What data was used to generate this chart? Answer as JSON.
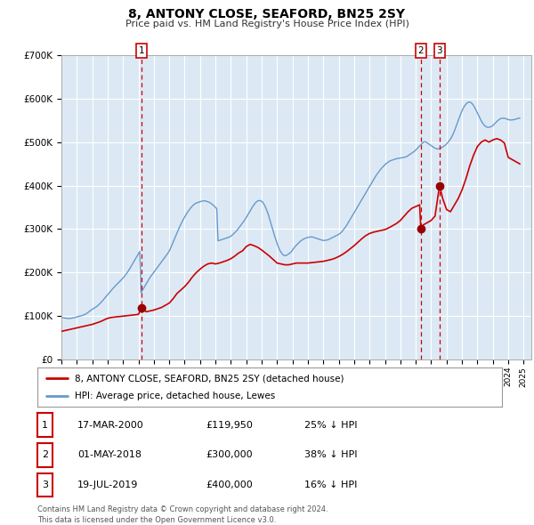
{
  "title": "8, ANTONY CLOSE, SEAFORD, BN25 2SY",
  "subtitle": "Price paid vs. HM Land Registry's House Price Index (HPI)",
  "bg_color": "#dce9f5",
  "grid_color": "#ffffff",
  "hpi_color": "#6699cc",
  "price_color": "#cc0000",
  "marker_color": "#990000",
  "ylim": [
    0,
    700000
  ],
  "yticks": [
    0,
    100000,
    200000,
    300000,
    400000,
    500000,
    600000,
    700000
  ],
  "ytick_labels": [
    "£0",
    "£100K",
    "£200K",
    "£300K",
    "£400K",
    "£500K",
    "£600K",
    "£700K"
  ],
  "xlim_start": 1995.0,
  "xlim_end": 2025.5,
  "xticks": [
    1995,
    1996,
    1997,
    1998,
    1999,
    2000,
    2001,
    2002,
    2003,
    2004,
    2005,
    2006,
    2007,
    2008,
    2009,
    2010,
    2011,
    2012,
    2013,
    2014,
    2015,
    2016,
    2017,
    2018,
    2019,
    2020,
    2021,
    2022,
    2023,
    2024,
    2025
  ],
  "sale_dates": [
    2000.21,
    2018.33,
    2019.54
  ],
  "sale_prices": [
    119950,
    300000,
    400000
  ],
  "sale_labels": [
    "1",
    "2",
    "3"
  ],
  "vline_dates": [
    2000.21,
    2018.33,
    2019.54
  ],
  "legend_price_label": "8, ANTONY CLOSE, SEAFORD, BN25 2SY (detached house)",
  "legend_hpi_label": "HPI: Average price, detached house, Lewes",
  "table_rows": [
    {
      "num": "1",
      "date": "17-MAR-2000",
      "price": "£119,950",
      "pct": "25% ↓ HPI"
    },
    {
      "num": "2",
      "date": "01-MAY-2018",
      "price": "£300,000",
      "pct": "38% ↓ HPI"
    },
    {
      "num": "3",
      "date": "19-JUL-2019",
      "price": "£400,000",
      "pct": "16% ↓ HPI"
    }
  ],
  "footnote": "Contains HM Land Registry data © Crown copyright and database right 2024.\nThis data is licensed under the Open Government Licence v3.0.",
  "hpi_data_x": [
    1995.0,
    1995.083,
    1995.167,
    1995.25,
    1995.333,
    1995.417,
    1995.5,
    1995.583,
    1995.667,
    1995.75,
    1995.833,
    1995.917,
    1996.0,
    1996.083,
    1996.167,
    1996.25,
    1996.333,
    1996.417,
    1996.5,
    1996.583,
    1996.667,
    1996.75,
    1996.833,
    1996.917,
    1997.0,
    1997.083,
    1997.167,
    1997.25,
    1997.333,
    1997.417,
    1997.5,
    1997.583,
    1997.667,
    1997.75,
    1997.833,
    1997.917,
    1998.0,
    1998.083,
    1998.167,
    1998.25,
    1998.333,
    1998.417,
    1998.5,
    1998.583,
    1998.667,
    1998.75,
    1998.833,
    1998.917,
    1999.0,
    1999.083,
    1999.167,
    1999.25,
    1999.333,
    1999.417,
    1999.5,
    1999.583,
    1999.667,
    1999.75,
    1999.833,
    1999.917,
    2000.0,
    2000.083,
    2000.167,
    2000.25,
    2000.333,
    2000.417,
    2000.5,
    2000.583,
    2000.667,
    2000.75,
    2000.833,
    2000.917,
    2001.0,
    2001.083,
    2001.167,
    2001.25,
    2001.333,
    2001.417,
    2001.5,
    2001.583,
    2001.667,
    2001.75,
    2001.833,
    2001.917,
    2002.0,
    2002.083,
    2002.167,
    2002.25,
    2002.333,
    2002.417,
    2002.5,
    2002.583,
    2002.667,
    2002.75,
    2002.833,
    2002.917,
    2003.0,
    2003.083,
    2003.167,
    2003.25,
    2003.333,
    2003.417,
    2003.5,
    2003.583,
    2003.667,
    2003.75,
    2003.833,
    2003.917,
    2004.0,
    2004.083,
    2004.167,
    2004.25,
    2004.333,
    2004.417,
    2004.5,
    2004.583,
    2004.667,
    2004.75,
    2004.833,
    2004.917,
    2005.0,
    2005.083,
    2005.167,
    2005.25,
    2005.333,
    2005.417,
    2005.5,
    2005.583,
    2005.667,
    2005.75,
    2005.833,
    2005.917,
    2006.0,
    2006.083,
    2006.167,
    2006.25,
    2006.333,
    2006.417,
    2006.5,
    2006.583,
    2006.667,
    2006.75,
    2006.833,
    2006.917,
    2007.0,
    2007.083,
    2007.167,
    2007.25,
    2007.333,
    2007.417,
    2007.5,
    2007.583,
    2007.667,
    2007.75,
    2007.833,
    2007.917,
    2008.0,
    2008.083,
    2008.167,
    2008.25,
    2008.333,
    2008.417,
    2008.5,
    2008.583,
    2008.667,
    2008.75,
    2008.833,
    2008.917,
    2009.0,
    2009.083,
    2009.167,
    2009.25,
    2009.333,
    2009.417,
    2009.5,
    2009.583,
    2009.667,
    2009.75,
    2009.833,
    2009.917,
    2010.0,
    2010.083,
    2010.167,
    2010.25,
    2010.333,
    2010.417,
    2010.5,
    2010.583,
    2010.667,
    2010.75,
    2010.833,
    2010.917,
    2011.0,
    2011.083,
    2011.167,
    2011.25,
    2011.333,
    2011.417,
    2011.5,
    2011.583,
    2011.667,
    2011.75,
    2011.833,
    2011.917,
    2012.0,
    2012.083,
    2012.167,
    2012.25,
    2012.333,
    2012.417,
    2012.5,
    2012.583,
    2012.667,
    2012.75,
    2012.833,
    2012.917,
    2013.0,
    2013.083,
    2013.167,
    2013.25,
    2013.333,
    2013.417,
    2013.5,
    2013.583,
    2013.667,
    2013.75,
    2013.833,
    2013.917,
    2014.0,
    2014.083,
    2014.167,
    2014.25,
    2014.333,
    2014.417,
    2014.5,
    2014.583,
    2014.667,
    2014.75,
    2014.833,
    2014.917,
    2015.0,
    2015.083,
    2015.167,
    2015.25,
    2015.333,
    2015.417,
    2015.5,
    2015.583,
    2015.667,
    2015.75,
    2015.833,
    2015.917,
    2016.0,
    2016.083,
    2016.167,
    2016.25,
    2016.333,
    2016.417,
    2016.5,
    2016.583,
    2016.667,
    2016.75,
    2016.833,
    2016.917,
    2017.0,
    2017.083,
    2017.167,
    2017.25,
    2017.333,
    2017.417,
    2017.5,
    2017.583,
    2017.667,
    2017.75,
    2017.833,
    2017.917,
    2018.0,
    2018.083,
    2018.167,
    2018.25,
    2018.333,
    2018.417,
    2018.5,
    2018.583,
    2018.667,
    2018.75,
    2018.833,
    2018.917,
    2019.0,
    2019.083,
    2019.167,
    2019.25,
    2019.333,
    2019.417,
    2019.5,
    2019.583,
    2019.667,
    2019.75,
    2019.833,
    2019.917,
    2020.0,
    2020.083,
    2020.167,
    2020.25,
    2020.333,
    2020.417,
    2020.5,
    2020.583,
    2020.667,
    2020.75,
    2020.833,
    2020.917,
    2021.0,
    2021.083,
    2021.167,
    2021.25,
    2021.333,
    2021.417,
    2021.5,
    2021.583,
    2021.667,
    2021.75,
    2021.833,
    2021.917,
    2022.0,
    2022.083,
    2022.167,
    2022.25,
    2022.333,
    2022.417,
    2022.5,
    2022.583,
    2022.667,
    2022.75,
    2022.833,
    2022.917,
    2023.0,
    2023.083,
    2023.167,
    2023.25,
    2023.333,
    2023.417,
    2023.5,
    2023.583,
    2023.667,
    2023.75,
    2023.833,
    2023.917,
    2024.0,
    2024.083,
    2024.167,
    2024.25,
    2024.333,
    2024.417,
    2024.5,
    2024.583,
    2024.667,
    2024.75
  ],
  "hpi_data_y": [
    97000,
    96500,
    96000,
    95500,
    95000,
    94800,
    94600,
    94900,
    95200,
    95800,
    96500,
    97300,
    98200,
    99000,
    99800,
    100500,
    101300,
    102200,
    103500,
    105000,
    107000,
    109000,
    111500,
    113500,
    115500,
    117500,
    119000,
    121000,
    123500,
    126000,
    129000,
    132000,
    135500,
    139000,
    142500,
    146000,
    149500,
    153000,
    156500,
    160000,
    163500,
    166500,
    169500,
    172500,
    175500,
    178500,
    181500,
    184500,
    187500,
    191000,
    195000,
    199000,
    203500,
    208000,
    213000,
    218000,
    223000,
    228500,
    233500,
    238500,
    243500,
    248500,
    154000,
    159000,
    164000,
    169000,
    174000,
    179000,
    184000,
    189000,
    193000,
    197000,
    201000,
    205000,
    209000,
    213000,
    217000,
    221000,
    225000,
    229000,
    233000,
    237000,
    241000,
    245000,
    250000,
    256000,
    263000,
    270000,
    277000,
    284000,
    291000,
    298000,
    305000,
    311000,
    317000,
    323000,
    328000,
    333000,
    338000,
    342000,
    346000,
    350000,
    353000,
    356000,
    358000,
    360000,
    361000,
    362000,
    363000,
    364000,
    364500,
    365000,
    365000,
    364000,
    363000,
    362000,
    360000,
    358000,
    356000,
    353000,
    350000,
    347000,
    273000,
    274000,
    275000,
    276000,
    277000,
    278000,
    279000,
    280000,
    281000,
    282000,
    284000,
    286000,
    289000,
    292000,
    295000,
    298000,
    302000,
    306000,
    310000,
    314000,
    318000,
    322000,
    327000,
    332000,
    337000,
    342000,
    347000,
    352000,
    356000,
    360000,
    363000,
    365000,
    366000,
    365000,
    364000,
    361000,
    356000,
    350000,
    343000,
    335000,
    325000,
    315000,
    305000,
    295000,
    285000,
    276000,
    267000,
    259000,
    252000,
    247000,
    243000,
    240000,
    239000,
    239500,
    241000,
    243000,
    245000,
    248000,
    252000,
    256000,
    260000,
    263000,
    266000,
    269000,
    272000,
    274000,
    276000,
    278000,
    279000,
    280000,
    281000,
    281500,
    282000,
    282000,
    281500,
    280500,
    279500,
    278500,
    277500,
    276500,
    275500,
    274500,
    274000,
    274000,
    274500,
    275000,
    276000,
    277500,
    279000,
    280500,
    282000,
    283500,
    285000,
    286500,
    288000,
    290000,
    293000,
    296000,
    300000,
    304000,
    308000,
    313000,
    318000,
    323000,
    328000,
    333000,
    338000,
    343000,
    348000,
    353000,
    358000,
    363000,
    368000,
    373000,
    378000,
    383000,
    388000,
    393000,
    398000,
    403000,
    408000,
    413000,
    418000,
    423000,
    427000,
    431000,
    435000,
    439000,
    442000,
    445000,
    448000,
    451000,
    453000,
    455000,
    457000,
    458000,
    459000,
    460000,
    461000,
    462000,
    462500,
    463000,
    463500,
    464000,
    464500,
    465000,
    466000,
    467000,
    469000,
    471000,
    473000,
    475000,
    477000,
    479000,
    482000,
    485000,
    488000,
    491000,
    494000,
    497000,
    500000,
    501000,
    500000,
    498000,
    496000,
    494000,
    492000,
    490000,
    488000,
    486000,
    485000,
    484000,
    484500,
    485500,
    487000,
    489000,
    491000,
    493000,
    496000,
    499000,
    503000,
    507000,
    512000,
    518000,
    525000,
    533000,
    541000,
    549000,
    557000,
    565000,
    572000,
    578000,
    583000,
    587000,
    590000,
    592000,
    592000,
    591000,
    588000,
    584000,
    579000,
    573000,
    567000,
    561000,
    555000,
    549000,
    544000,
    540000,
    537000,
    535000,
    534000,
    534000,
    535000,
    536000,
    538000,
    541000,
    544000,
    547000,
    550000,
    552000,
    554000,
    555000,
    555000,
    555000,
    554000,
    553000,
    552000,
    551000,
    551000,
    551000,
    551500,
    552000,
    553000,
    554000,
    555000,
    555000
  ],
  "price_data_x": [
    1995.0,
    1995.25,
    1995.5,
    1995.75,
    1996.0,
    1996.25,
    1996.5,
    1996.75,
    1997.0,
    1997.25,
    1997.5,
    1997.75,
    1998.0,
    1998.25,
    1998.5,
    1998.75,
    1999.0,
    1999.25,
    1999.5,
    1999.75,
    2000.0,
    2000.21,
    2000.5,
    2000.75,
    2001.0,
    2001.25,
    2001.5,
    2001.75,
    2002.0,
    2002.25,
    2002.5,
    2002.75,
    2003.0,
    2003.25,
    2003.5,
    2003.75,
    2004.0,
    2004.25,
    2004.5,
    2004.75,
    2005.0,
    2005.25,
    2005.5,
    2005.75,
    2006.0,
    2006.25,
    2006.5,
    2006.75,
    2007.0,
    2007.25,
    2007.5,
    2007.75,
    2008.0,
    2008.25,
    2008.5,
    2008.75,
    2009.0,
    2009.25,
    2009.5,
    2009.75,
    2010.0,
    2010.25,
    2010.5,
    2010.75,
    2011.0,
    2011.25,
    2011.5,
    2011.75,
    2012.0,
    2012.25,
    2012.5,
    2012.75,
    2013.0,
    2013.25,
    2013.5,
    2013.75,
    2014.0,
    2014.25,
    2014.5,
    2014.75,
    2015.0,
    2015.25,
    2015.5,
    2015.75,
    2016.0,
    2016.25,
    2016.5,
    2016.75,
    2017.0,
    2017.25,
    2017.5,
    2017.75,
    2018.0,
    2018.25,
    2018.33,
    2018.5,
    2018.75,
    2019.0,
    2019.25,
    2019.54,
    2019.75,
    2020.0,
    2020.25,
    2020.5,
    2020.75,
    2021.0,
    2021.25,
    2021.5,
    2021.75,
    2022.0,
    2022.25,
    2022.5,
    2022.75,
    2023.0,
    2023.25,
    2023.5,
    2023.75,
    2024.0,
    2024.25,
    2024.5,
    2024.75
  ],
  "price_data_y": [
    65000,
    67000,
    69000,
    71000,
    73000,
    75000,
    77000,
    79000,
    81000,
    84000,
    87000,
    91000,
    95000,
    97000,
    98000,
    99000,
    100000,
    101000,
    102000,
    103000,
    104000,
    119950,
    110000,
    112000,
    114000,
    117000,
    120000,
    125000,
    130000,
    140000,
    152000,
    160000,
    168000,
    178000,
    190000,
    200000,
    208000,
    215000,
    220000,
    222000,
    220000,
    222000,
    225000,
    228000,
    232000,
    238000,
    245000,
    250000,
    260000,
    265000,
    262000,
    258000,
    252000,
    245000,
    238000,
    230000,
    222000,
    220000,
    218000,
    218000,
    220000,
    222000,
    222000,
    222000,
    222000,
    223000,
    224000,
    225000,
    226000,
    228000,
    230000,
    233000,
    237000,
    242000,
    248000,
    255000,
    262000,
    270000,
    278000,
    285000,
    290000,
    293000,
    295000,
    297000,
    299000,
    303000,
    308000,
    313000,
    320000,
    330000,
    340000,
    348000,
    352000,
    356000,
    300000,
    310000,
    315000,
    320000,
    330000,
    400000,
    370000,
    345000,
    340000,
    355000,
    370000,
    390000,
    415000,
    445000,
    470000,
    490000,
    500000,
    505000,
    500000,
    505000,
    508000,
    505000,
    498000,
    465000,
    460000,
    455000,
    450000
  ]
}
